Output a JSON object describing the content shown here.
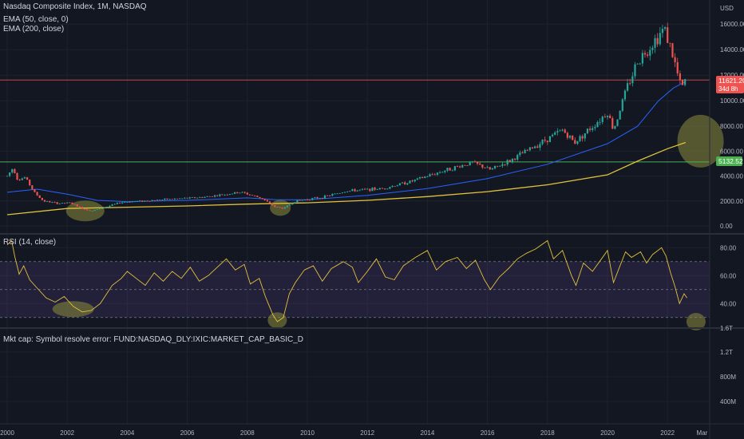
{
  "header": {
    "title": "Nasdaq Composite Index, 1M, NASDAQ",
    "ema1": "EMA (50, close, 0)",
    "ema2": "EMA (200, close)",
    "currency": "USD"
  },
  "rsi_label": "RSI (14, close)",
  "mktcap_label": "Mkt cap: Symbol resolve error: FUND:NASDAQ_DLY:IXIC:MARKET_CAP_BASIC_D",
  "badges": {
    "price": "11621.20",
    "countdown": "34d 8h",
    "level": "5132.52"
  },
  "colors": {
    "background": "#131722",
    "up": "#26a69a",
    "down": "#ef5350",
    "ema50": "#2962ff",
    "ema200": "#e2c23b",
    "rsi": "#e2c23b",
    "level_line": "#4caf50",
    "price_line": "#ef5350",
    "highlight": "#8c8c3c",
    "rsi_band": "#7e57c2"
  },
  "chart_data": [
    {
      "type": "candlestick",
      "title": "Nasdaq Composite Index, 1M, NASDAQ",
      "ylabel": "USD",
      "x_ticks": [
        "2000",
        "2002",
        "2004",
        "2006",
        "2008",
        "2010",
        "2012",
        "2014",
        "2016",
        "2018",
        "2020",
        "2022",
        "Mar"
      ],
      "y_ticks": [
        "16000.00",
        "14000.00",
        "12000.00",
        "10000.00",
        "8000.00",
        "6000.00",
        "4000.00",
        "2000.00",
        "0.00"
      ],
      "ylim": [
        0,
        16500
      ],
      "scale": "piecewise (compressed above 8000)",
      "price_anchors": [
        [
          2000.0,
          4000
        ],
        [
          2000.2,
          4700
        ],
        [
          2000.35,
          3700
        ],
        [
          2000.6,
          3900
        ],
        [
          2000.9,
          2700
        ],
        [
          2001.2,
          2000
        ],
        [
          2001.7,
          1800
        ],
        [
          2002.1,
          1850
        ],
        [
          2002.5,
          1400
        ],
        [
          2002.8,
          1200
        ],
        [
          2003.2,
          1450
        ],
        [
          2003.8,
          1900
        ],
        [
          2004.5,
          2000
        ],
        [
          2005.5,
          2150
        ],
        [
          2006.5,
          2300
        ],
        [
          2007.8,
          2700
        ],
        [
          2008.5,
          2200
        ],
        [
          2008.9,
          1550
        ],
        [
          2009.2,
          1400
        ],
        [
          2009.6,
          2000
        ],
        [
          2010.5,
          2300
        ],
        [
          2011.3,
          2800
        ],
        [
          2012.5,
          3000
        ],
        [
          2013.5,
          3600
        ],
        [
          2014.5,
          4400
        ],
        [
          2015.5,
          5100
        ],
        [
          2016.1,
          4500
        ],
        [
          2016.8,
          5300
        ],
        [
          2017.5,
          6300
        ],
        [
          2018.5,
          7700
        ],
        [
          2018.9,
          6700
        ],
        [
          2019.5,
          8000
        ],
        [
          2020.0,
          9100
        ],
        [
          2020.2,
          7700
        ],
        [
          2020.6,
          10700
        ],
        [
          2021.0,
          13100
        ],
        [
          2021.5,
          14500
        ],
        [
          2021.9,
          15700
        ],
        [
          2022.2,
          13300
        ],
        [
          2022.45,
          11000
        ],
        [
          2022.65,
          11621
        ]
      ],
      "series": [
        {
          "name": "EMA (50, close, 0)",
          "points": [
            [
              2000,
              2700
            ],
            [
              2001,
              2950
            ],
            [
              2002,
              2550
            ],
            [
              2003,
              2050
            ],
            [
              2004,
              1950
            ],
            [
              2006,
              2050
            ],
            [
              2008,
              2250
            ],
            [
              2009,
              2100
            ],
            [
              2010,
              2100
            ],
            [
              2012,
              2450
            ],
            [
              2014,
              3000
            ],
            [
              2016,
              3800
            ],
            [
              2018,
              4950
            ],
            [
              2020,
              6600
            ],
            [
              2021,
              8000
            ],
            [
              2021.7,
              10000
            ],
            [
              2022.2,
              11000
            ],
            [
              2022.6,
              11500
            ]
          ]
        },
        {
          "name": "EMA (200, close)",
          "points": [
            [
              2000,
              900
            ],
            [
              2002,
              1400
            ],
            [
              2004,
              1500
            ],
            [
              2006,
              1600
            ],
            [
              2008,
              1750
            ],
            [
              2010,
              1850
            ],
            [
              2012,
              2050
            ],
            [
              2014,
              2350
            ],
            [
              2016,
              2750
            ],
            [
              2018,
              3300
            ],
            [
              2020,
              4100
            ],
            [
              2021,
              5200
            ],
            [
              2022,
              6200
            ],
            [
              2022.6,
              6700
            ]
          ]
        }
      ],
      "horizontal_lines": [
        {
          "label": "5132.52",
          "value": 5132.52
        },
        {
          "label": "11621.20",
          "value": 11621.2
        }
      ]
    },
    {
      "type": "line",
      "title": "RSI (14, close)",
      "y_ticks": [
        "80.00",
        "60.00",
        "40.00"
      ],
      "ylim": [
        23,
        87
      ],
      "bands": [
        30,
        50,
        70
      ],
      "series": [
        {
          "name": "RSI (14, close)",
          "points": [
            [
              2000.0,
              82
            ],
            [
              2000.15,
              85
            ],
            [
              2000.25,
              74
            ],
            [
              2000.4,
              61
            ],
            [
              2000.55,
              67
            ],
            [
              2000.75,
              57
            ],
            [
              2001.0,
              51
            ],
            [
              2001.3,
              44
            ],
            [
              2001.6,
              41
            ],
            [
              2001.9,
              45
            ],
            [
              2002.2,
              38
            ],
            [
              2002.5,
              34
            ],
            [
              2002.8,
              35
            ],
            [
              2003.1,
              40
            ],
            [
              2003.5,
              53
            ],
            [
              2003.8,
              58
            ],
            [
              2004.0,
              63
            ],
            [
              2004.3,
              58
            ],
            [
              2004.6,
              53
            ],
            [
              2004.9,
              62
            ],
            [
              2005.2,
              56
            ],
            [
              2005.5,
              63
            ],
            [
              2005.8,
              58
            ],
            [
              2006.1,
              66
            ],
            [
              2006.4,
              56
            ],
            [
              2006.7,
              60
            ],
            [
              2007.0,
              66
            ],
            [
              2007.3,
              72
            ],
            [
              2007.6,
              64
            ],
            [
              2007.9,
              68
            ],
            [
              2008.1,
              54
            ],
            [
              2008.4,
              58
            ],
            [
              2008.6,
              45
            ],
            [
              2008.85,
              32
            ],
            [
              2009.0,
              27
            ],
            [
              2009.2,
              30
            ],
            [
              2009.4,
              47
            ],
            [
              2009.6,
              55
            ],
            [
              2009.9,
              64
            ],
            [
              2010.2,
              67
            ],
            [
              2010.5,
              56
            ],
            [
              2010.8,
              65
            ],
            [
              2011.2,
              70
            ],
            [
              2011.5,
              66
            ],
            [
              2011.7,
              55
            ],
            [
              2012.0,
              63
            ],
            [
              2012.3,
              72
            ],
            [
              2012.6,
              59
            ],
            [
              2012.9,
              57
            ],
            [
              2013.2,
              67
            ],
            [
              2013.6,
              73
            ],
            [
              2014.0,
              78
            ],
            [
              2014.3,
              64
            ],
            [
              2014.6,
              70
            ],
            [
              2015.0,
              73
            ],
            [
              2015.3,
              65
            ],
            [
              2015.6,
              71
            ],
            [
              2015.9,
              57
            ],
            [
              2016.1,
              50
            ],
            [
              2016.4,
              59
            ],
            [
              2016.7,
              65
            ],
            [
              2017.0,
              72
            ],
            [
              2017.3,
              76
            ],
            [
              2017.6,
              79
            ],
            [
              2018.0,
              85
            ],
            [
              2018.2,
              72
            ],
            [
              2018.5,
              78
            ],
            [
              2018.8,
              60
            ],
            [
              2018.95,
              53
            ],
            [
              2019.2,
              69
            ],
            [
              2019.5,
              63
            ],
            [
              2019.8,
              72
            ],
            [
              2020.0,
              78
            ],
            [
              2020.2,
              55
            ],
            [
              2020.4,
              66
            ],
            [
              2020.6,
              77
            ],
            [
              2020.8,
              73
            ],
            [
              2021.1,
              77
            ],
            [
              2021.3,
              69
            ],
            [
              2021.5,
              75
            ],
            [
              2021.8,
              80
            ],
            [
              2021.95,
              74
            ],
            [
              2022.1,
              62
            ],
            [
              2022.25,
              52
            ],
            [
              2022.4,
              40
            ],
            [
              2022.55,
              47
            ],
            [
              2022.65,
              44
            ]
          ]
        }
      ]
    },
    {
      "type": "line",
      "title": "Mkt cap",
      "y_ticks": [
        "1.6T",
        "1.2T",
        "800M",
        "400M"
      ],
      "series": []
    }
  ]
}
